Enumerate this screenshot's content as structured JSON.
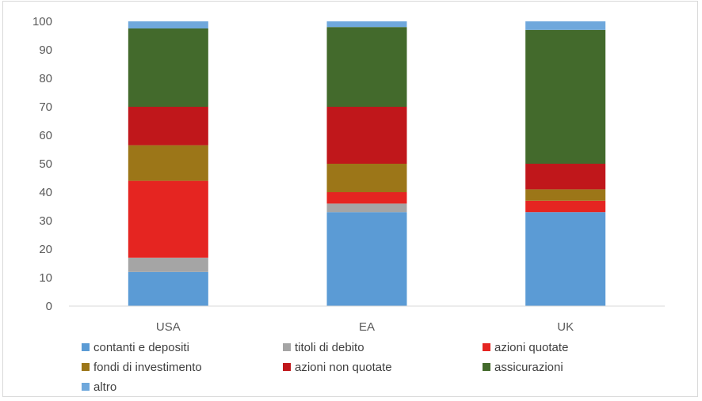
{
  "chart_data": {
    "type": "bar",
    "stacked": true,
    "title": "",
    "xlabel": "",
    "ylabel": "",
    "ylim": [
      0,
      100
    ],
    "yticks": [
      0,
      10,
      20,
      30,
      40,
      50,
      60,
      70,
      80,
      90,
      100
    ],
    "grid": false,
    "legend_position": "bottom",
    "categories": [
      "USA",
      "EA",
      "UK"
    ],
    "series": [
      {
        "name": "contanti e depositi",
        "color": "#5b9bd5",
        "values": [
          12,
          33,
          33
        ]
      },
      {
        "name": "titoli di debito",
        "color": "#a5a5a5",
        "values": [
          5,
          3,
          0
        ]
      },
      {
        "name": "azioni quotate",
        "color": "#e52521",
        "values": [
          27,
          4,
          4
        ]
      },
      {
        "name": "fondi di investimento",
        "color": "#9c7618",
        "values": [
          12.5,
          10,
          4
        ]
      },
      {
        "name": "azioni non quotate",
        "color": "#c0171b",
        "values": [
          13.5,
          20,
          9
        ]
      },
      {
        "name": "assicurazioni",
        "color": "#436a2c",
        "values": [
          27.5,
          28,
          47
        ]
      },
      {
        "name": "altro",
        "color": "#6fa8dc",
        "values": [
          2.5,
          2,
          3
        ]
      }
    ]
  }
}
